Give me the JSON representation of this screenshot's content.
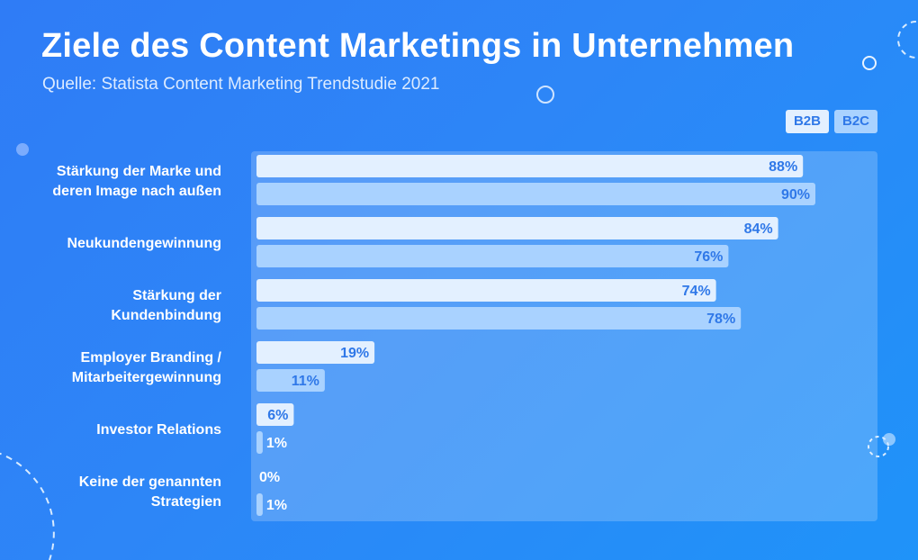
{
  "colors": {
    "b2b_bar": "#e3f0ff",
    "b2c_bar": "#a9d2ff",
    "label_in_bar": "#2f78e8",
    "label_outside": "#ffffff",
    "panel": "#ffffff"
  },
  "chart_data": {
    "type": "bar",
    "orientation": "horizontal",
    "title": "Ziele des Content Marketings in Unternehmen",
    "subtitle": "Quelle: Statista Content Marketing Trendstudie 2021",
    "categories": [
      [
        "Stärkung der Marke und",
        "deren Image nach außen"
      ],
      [
        "Neukundengewinnung"
      ],
      [
        "Stärkung der",
        "Kundenbindung"
      ],
      [
        "Employer Branding /",
        "Mitarbeitergewinnung"
      ],
      [
        "Investor Relations"
      ],
      [
        "Keine der genannten",
        "Strategien"
      ]
    ],
    "series": [
      {
        "name": "B2B",
        "values": [
          88,
          84,
          74,
          19,
          6,
          0
        ]
      },
      {
        "name": "B2C",
        "values": [
          90,
          76,
          78,
          11,
          1,
          1
        ]
      }
    ],
    "value_suffix": "%",
    "xlim": [
      0,
      100
    ],
    "grid": false,
    "legend_position": "top-right"
  }
}
